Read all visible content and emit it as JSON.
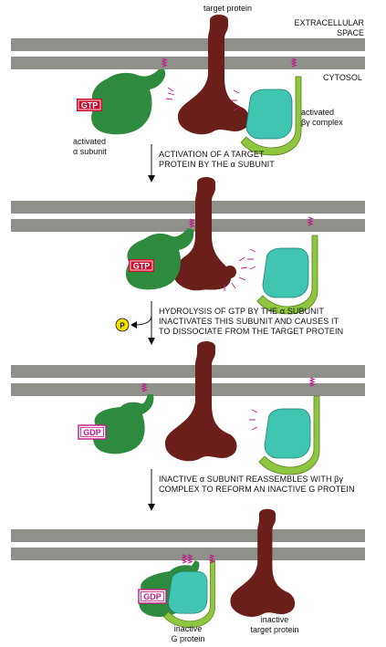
{
  "labels": {
    "target_protein": "target protein",
    "extracellular": "EXTRACELLULAR\nSPACE",
    "cytosol": "CYTOSOL",
    "activated_alpha": "activated\nα subunit",
    "activated_bg": "activated\nβγ complex",
    "inactive_g": "inactive\nG protein",
    "inactive_target": "inactive\ntarget protein"
  },
  "badges": {
    "gtp": "GTP",
    "gdp": "GDP",
    "phosphate": "P"
  },
  "steps": {
    "step1": "ACTIVATION OF A TARGET\nPROTEIN BY THE α SUBUNIT",
    "step2": "HYDROLYSIS OF GTP BY THE α SUBUNIT\nINACTIVATES THIS SUBUNIT AND CAUSES IT\nTO DISSOCIATE FROM THE TARGET PROTEIN",
    "step3": "INACTIVE α SUBUNIT REASSEMBLES WITH βγ\nCOMPLEX TO REFORM AN INACTIVE G PROTEIN"
  },
  "colors": {
    "membrane": "#8f9089",
    "target": "#6b1f1a",
    "alpha": "#2e8a3c",
    "beta": "#8ec63f",
    "gamma_inner": "#3fc5b0",
    "gtp": "#c8102e",
    "gdp": "#c2188b",
    "phosphate": "#f2e200"
  }
}
